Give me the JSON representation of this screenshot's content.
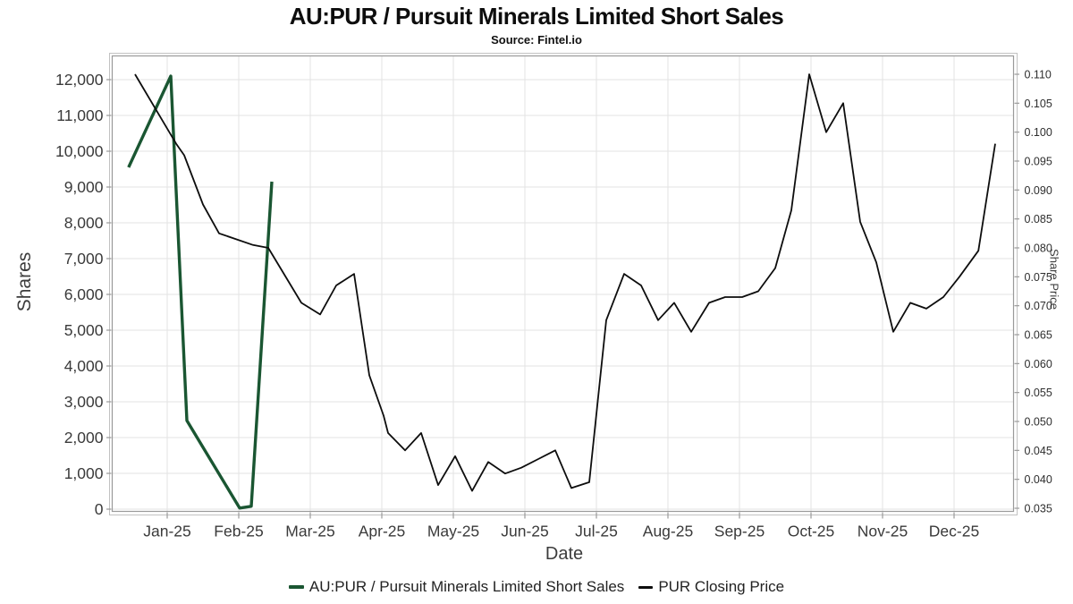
{
  "title": "AU:PUR / Pursuit Minerals Limited Short Sales",
  "subtitle": "Source: Fintel.io",
  "legend": {
    "short_sales": "AU:PUR / Pursuit Minerals Limited Short Sales",
    "closing_price": "PUR Closing Price"
  },
  "colors": {
    "short_sales_line": "#1a5632",
    "closing_price_line": "#0d0d0d",
    "gridline": "#e3e3e3",
    "frame": "#9a9a9a",
    "tick_label": "#3a3a3a"
  },
  "chart_data": {
    "type": "line",
    "title": "AU:PUR / Pursuit Minerals Limited Short Sales",
    "subtitle": "Source: Fintel.io",
    "grid": true,
    "legend_position": "bottom",
    "x_axis": {
      "label": "Date",
      "unit": "month (m=0 at Jan-25 tick)",
      "ticks": [
        {
          "m": 0,
          "label": "Jan-25"
        },
        {
          "m": 1,
          "label": "Feb-25"
        },
        {
          "m": 2,
          "label": "Mar-25"
        },
        {
          "m": 3,
          "label": "Apr-25"
        },
        {
          "m": 4,
          "label": "May-25"
        },
        {
          "m": 5,
          "label": "Jun-25"
        },
        {
          "m": 6,
          "label": "Jul-25"
        },
        {
          "m": 7,
          "label": "Aug-25"
        },
        {
          "m": 8,
          "label": "Sep-25"
        },
        {
          "m": 9,
          "label": "Oct-25"
        },
        {
          "m": 10,
          "label": "Nov-25"
        },
        {
          "m": 11,
          "label": "Dec-25"
        }
      ]
    },
    "y_left": {
      "label": "Shares",
      "min": 0,
      "max": 12000,
      "step": 1000,
      "ticks": [
        {
          "v": 0,
          "label": "0"
        },
        {
          "v": 1000,
          "label": "1,000"
        },
        {
          "v": 2000,
          "label": "2,000"
        },
        {
          "v": 3000,
          "label": "3,000"
        },
        {
          "v": 4000,
          "label": "4,000"
        },
        {
          "v": 5000,
          "label": "5,000"
        },
        {
          "v": 6000,
          "label": "6,000"
        },
        {
          "v": 7000,
          "label": "7,000"
        },
        {
          "v": 8000,
          "label": "8,000"
        },
        {
          "v": 9000,
          "label": "9,000"
        },
        {
          "v": 10000,
          "label": "10,000"
        },
        {
          "v": 11000,
          "label": "11,000"
        },
        {
          "v": 12000,
          "label": "12,000"
        }
      ]
    },
    "y_right": {
      "label": "Share Price",
      "min": 0.035,
      "max": 0.11,
      "step": 0.005,
      "ticks": [
        {
          "v": 0.035,
          "label": "0.035"
        },
        {
          "v": 0.04,
          "label": "0.040"
        },
        {
          "v": 0.045,
          "label": "0.045"
        },
        {
          "v": 0.05,
          "label": "0.050"
        },
        {
          "v": 0.055,
          "label": "0.055"
        },
        {
          "v": 0.06,
          "label": "0.060"
        },
        {
          "v": 0.065,
          "label": "0.065"
        },
        {
          "v": 0.07,
          "label": "0.070"
        },
        {
          "v": 0.075,
          "label": "0.075"
        },
        {
          "v": 0.08,
          "label": "0.080"
        },
        {
          "v": 0.085,
          "label": "0.085"
        },
        {
          "v": 0.09,
          "label": "0.090"
        },
        {
          "v": 0.095,
          "label": "0.095"
        },
        {
          "v": 0.1,
          "label": "0.100"
        },
        {
          "v": 0.105,
          "label": "0.105"
        },
        {
          "v": 0.11,
          "label": "0.110"
        }
      ]
    },
    "series": [
      {
        "name": "AU:PUR / Pursuit Minerals Limited Short Sales",
        "axis": "left",
        "color": "#1a5632",
        "width": 3.4,
        "points": [
          [
            -0.54,
            9550
          ],
          [
            0.05,
            12100
          ],
          [
            0.275,
            2475
          ],
          [
            0.3125,
            2350
          ],
          [
            1.0125,
            30
          ],
          [
            1.175,
            80
          ],
          [
            1.4625,
            9150
          ]
        ]
      },
      {
        "name": "PUR Closing Price",
        "axis": "right",
        "color": "#0d0d0d",
        "width": 1.8,
        "points": [
          [
            -0.45,
            0.11
          ],
          [
            0.125,
            0.098
          ],
          [
            0.2375,
            0.096
          ],
          [
            0.5,
            0.0875
          ],
          [
            0.725,
            0.0825
          ],
          [
            1.2,
            0.0805
          ],
          [
            1.4125,
            0.08
          ],
          [
            1.875,
            0.0705
          ],
          [
            2.1375,
            0.0685
          ],
          [
            2.3625,
            0.0735
          ],
          [
            2.6125,
            0.0755
          ],
          [
            2.825,
            0.058
          ],
          [
            3.025,
            0.051
          ],
          [
            3.0875,
            0.048
          ],
          [
            3.325,
            0.045
          ],
          [
            3.55,
            0.048
          ],
          [
            3.7875,
            0.039
          ],
          [
            4.025,
            0.044
          ],
          [
            4.2625,
            0.038
          ],
          [
            4.4875,
            0.043
          ],
          [
            4.725,
            0.041
          ],
          [
            4.95,
            0.042
          ],
          [
            5.1875,
            0.0435
          ],
          [
            5.425,
            0.045
          ],
          [
            5.65,
            0.0385
          ],
          [
            5.9,
            0.0395
          ],
          [
            6.1375,
            0.0675
          ],
          [
            6.3875,
            0.0755
          ],
          [
            6.625,
            0.0735
          ],
          [
            6.8625,
            0.0675
          ],
          [
            7.0875,
            0.0705
          ],
          [
            7.325,
            0.0655
          ],
          [
            7.575,
            0.0705
          ],
          [
            7.8,
            0.0715
          ],
          [
            8.0375,
            0.0715
          ],
          [
            8.2625,
            0.0725
          ],
          [
            8.5,
            0.0765
          ],
          [
            8.725,
            0.0865
          ],
          [
            8.975,
            0.11
          ],
          [
            9.2125,
            0.1
          ],
          [
            9.45,
            0.105
          ],
          [
            9.6875,
            0.0845
          ],
          [
            9.9125,
            0.0775
          ],
          [
            10.15,
            0.0655
          ],
          [
            10.3875,
            0.0705
          ],
          [
            10.6125,
            0.0695
          ],
          [
            10.85,
            0.0715
          ],
          [
            11.075,
            0.075
          ],
          [
            11.34,
            0.0795
          ],
          [
            11.575,
            0.098
          ]
        ]
      }
    ]
  }
}
